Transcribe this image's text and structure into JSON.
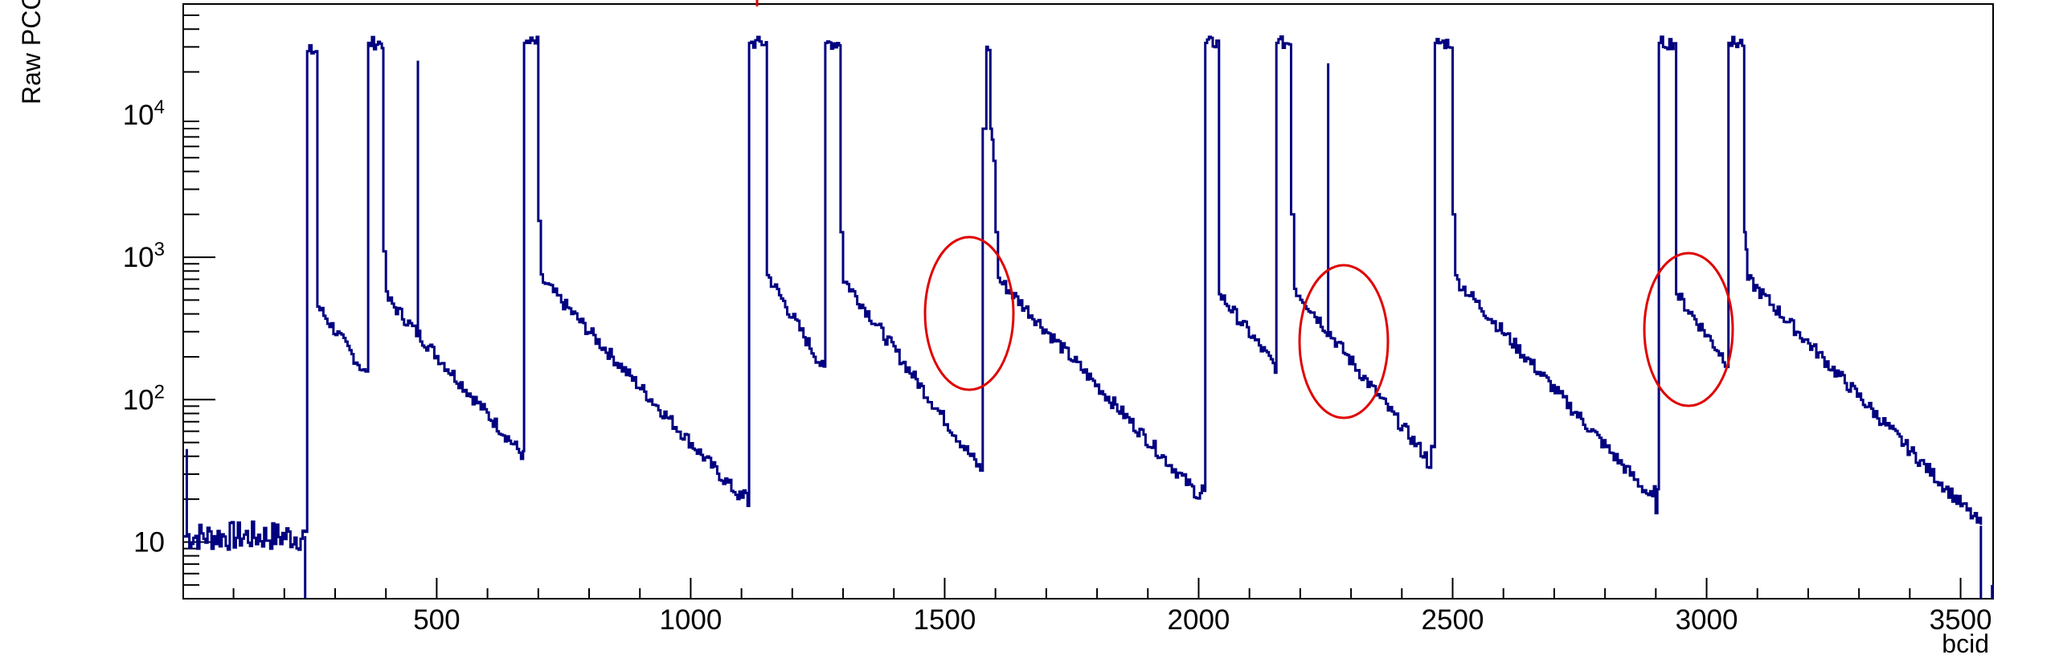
{
  "chart_data": {
    "type": "line",
    "xlabel": "bcid",
    "ylabel": "Raw PCC",
    "xlim": [
      1,
      3564
    ],
    "ylim": [
      4,
      60000
    ],
    "y_scale": "log",
    "x_ticks": [
      {
        "value": 500,
        "label": "500"
      },
      {
        "value": 1000,
        "label": "1000"
      },
      {
        "value": 1500,
        "label": "1500"
      },
      {
        "value": 2000,
        "label": "2000"
      },
      {
        "value": 2500,
        "label": "2500"
      },
      {
        "value": 3000,
        "label": "3000"
      },
      {
        "value": 3500,
        "label": "3500"
      }
    ],
    "y_ticks": [
      {
        "value": 10,
        "base": "10",
        "exp": ""
      },
      {
        "value": 100,
        "base": "10",
        "exp": "2"
      },
      {
        "value": 1000,
        "base": "10",
        "exp": "3"
      },
      {
        "value": 10000,
        "base": "10",
        "exp": "4"
      }
    ],
    "grid": false,
    "line_color": "#000080",
    "annotation_color": "#e00000",
    "series": [
      {
        "x": [
          1,
          240,
          245,
          262,
          265,
          360,
          365,
          392,
          395,
          400,
          670,
          672,
          697,
          700,
          705,
          1100,
          1112,
          1115,
          1148,
          1150,
          1262,
          1265,
          1292,
          1295,
          1300,
          1570,
          1575,
          1582,
          1585,
          1590,
          1596,
          1600,
          1605,
          1995,
          2010,
          2013,
          2035,
          2040,
          2150,
          2153,
          2178,
          2182,
          2188,
          2445,
          2462,
          2465,
          2495,
          2500,
          2505,
          2893,
          2903,
          2906,
          2935,
          2940,
          3040,
          3043,
          3070,
          3074,
          3080,
          3540
        ],
        "y": [
          11,
          11,
          28000,
          28000,
          450,
          150,
          32000,
          32000,
          1100,
          520,
          40,
          32000,
          32000,
          1800,
          700,
          20,
          20,
          32000,
          32000,
          750,
          160,
          32000,
          32000,
          1500,
          700,
          32,
          8000,
          30000,
          30000,
          8000,
          5000,
          1500,
          700,
          22,
          22,
          32000,
          32000,
          550,
          170,
          32000,
          32000,
          2000,
          600,
          40,
          40,
          32000,
          32000,
          2000,
          700,
          20,
          20,
          32000,
          32000,
          550,
          180,
          32000,
          32000,
          1500,
          700,
          13
        ]
      }
    ],
    "spikes": [
      {
        "x": 463,
        "y": 24000
      },
      {
        "x": 2255,
        "y": 23000
      }
    ]
  }
}
